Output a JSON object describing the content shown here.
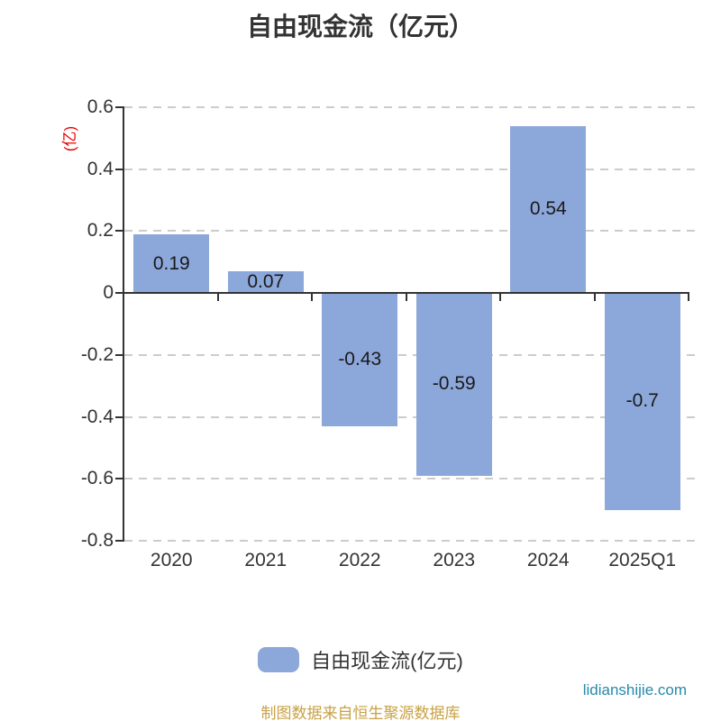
{
  "title": "自由现金流（亿元）",
  "y_axis_name": "(亿)",
  "legend": {
    "label": "自由现金流(亿元)"
  },
  "footer": {
    "source": "制图数据来自恒生聚源数据库",
    "watermark": "lidianshijie.com"
  },
  "colors": {
    "bar": "#8CA7DA",
    "axis": "#333333",
    "grid": "#CCCCCC",
    "label": "#1A1A1A",
    "axis_name_red": "#E60000",
    "source_gold": "#C9A145",
    "watermark_teal": "#2589A9"
  },
  "chart_data": {
    "type": "bar",
    "categories": [
      "2020",
      "2021",
      "2022",
      "2023",
      "2024",
      "2025Q1"
    ],
    "values": [
      0.19,
      0.07,
      -0.43,
      -0.59,
      0.54,
      -0.7
    ],
    "value_labels": [
      "0.19",
      "0.07",
      "-0.43",
      "-0.59",
      "0.54",
      "-0.7"
    ],
    "series_name": "自由现金流(亿元)",
    "title": "自由现金流（亿元）",
    "xlabel": "",
    "ylabel": "(亿)",
    "ylim": [
      -0.8,
      0.6
    ],
    "yticks": [
      0.6,
      0.4,
      0.2,
      0,
      -0.2,
      -0.4,
      -0.6,
      -0.8
    ],
    "ytick_labels": [
      "0.6",
      "0.4",
      "0.2",
      "0",
      "-0.2",
      "-0.4",
      "-0.6",
      "-0.8"
    ],
    "grid": "dashed-horizontal",
    "legend_position": "bottom"
  }
}
